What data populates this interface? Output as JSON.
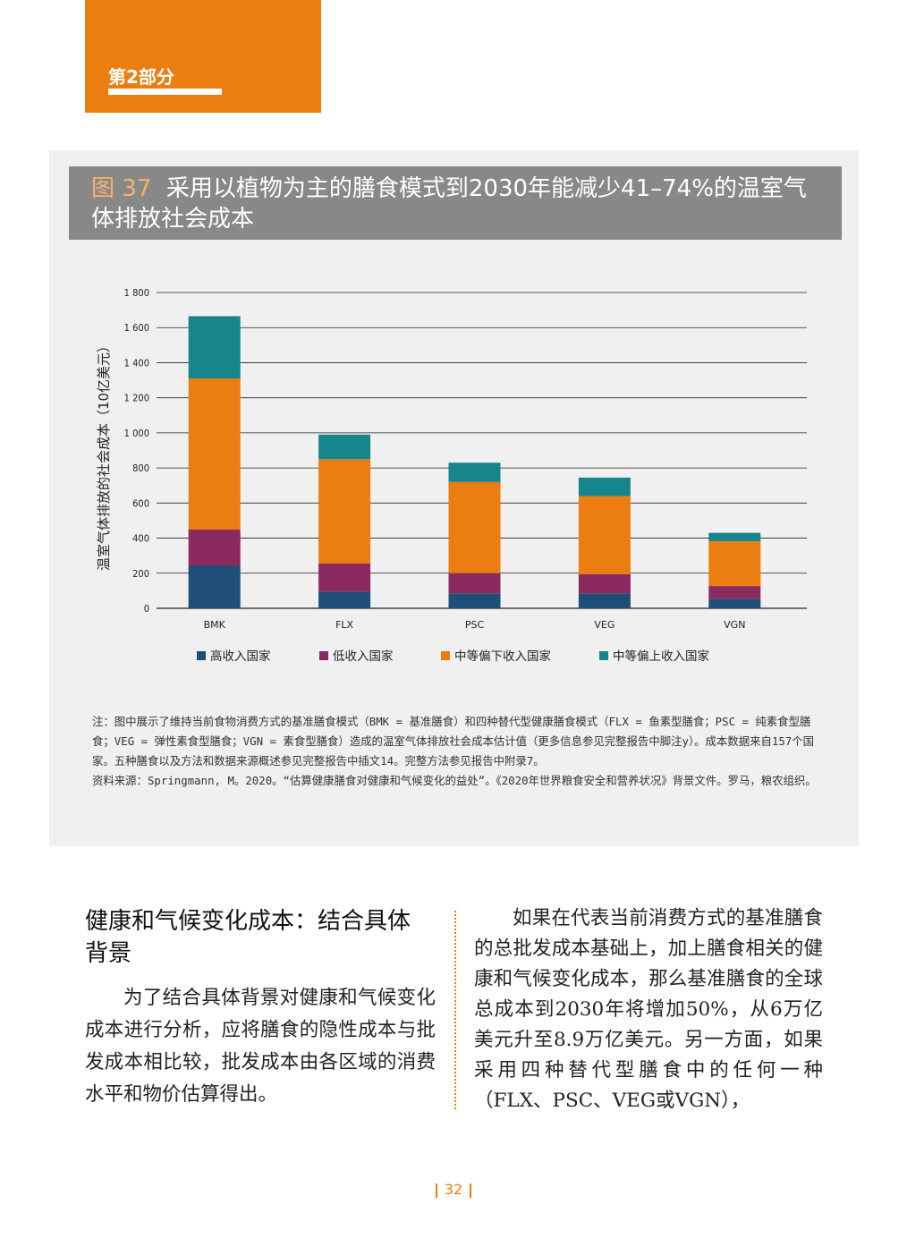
{
  "section": {
    "label": "第2部分"
  },
  "figure": {
    "number": "图 37",
    "title": "采用以植物为主的膳食模式到2030年能减少41–74%的温室气体排放社会成本"
  },
  "chart_data": {
    "type": "bar",
    "stacked": true,
    "categories": [
      "BMK",
      "FLX",
      "PSC",
      "VEG",
      "VGN"
    ],
    "series": [
      {
        "name": "高收入国家",
        "color": "#1f4e79",
        "values": [
          245,
          95,
          85,
          85,
          55
        ]
      },
      {
        "name": "低收入国家",
        "color": "#8b2a5e",
        "values": [
          205,
          160,
          115,
          110,
          72
        ]
      },
      {
        "name": "中等偏下收入国家",
        "color": "#ec7d10",
        "values": [
          860,
          595,
          520,
          445,
          255
        ]
      },
      {
        "name": "中等偏上收入国家",
        "color": "#17858c",
        "values": [
          355,
          140,
          110,
          105,
          48
        ]
      }
    ],
    "ylabel": "温室气体排放的社会成本（10亿美元）",
    "ylim": [
      0,
      1800
    ],
    "yticks": [
      0,
      200,
      400,
      600,
      800,
      1000,
      1200,
      1400,
      1600,
      1800
    ],
    "ytick_labels": [
      "0",
      "200",
      "400",
      "600",
      "800",
      "1 000",
      "1 200",
      "1 400",
      "1 600",
      "1 800"
    ],
    "legend_position": "bottom"
  },
  "notes": {
    "note": "注：图中展示了维持当前食物消费方式的基准膳食模式（BMK = 基准膳食）和四种替代型健康膳食模式（FLX = 鱼素型膳食；PSC = 纯素食型膳食；VEG = 弹性素食型膳食；VGN = 素食型膳食）造成的温室气体排放社会成本估计值（更多信息参见完整报告中脚注y）。成本数据来自157个国家。五种膳食以及方法和数据来源概述参见完整报告中插文14。完整方法参见报告中附录7。",
    "source": "资料来源：Springmann, M。2020。“估算健康膳食对健康和气候变化的益处”。《2020年世界粮食安全和营养状况》背景文件。罗马，粮农组织。"
  },
  "body": {
    "heading": "健康和气候变化成本：结合具体背景",
    "left_paragraph": "为了结合具体背景对健康和气候变化成本进行分析，应将膳食的隐性成本与批发成本相比较，批发成本由各区域的消费水平和物价估算得出。",
    "right_paragraph": "如果在代表当前消费方式的基准膳食的总批发成本基础上，加上膳食相关的健康和气候变化成本，那么基准膳食的全球总成本到2030年将增加50%，从6万亿美元升至8.9万亿美元。另一方面，如果采用四种替代型膳食中的任何一种（FLX、PSC、VEG或VGN），"
  },
  "footer": {
    "page_number": "32"
  }
}
